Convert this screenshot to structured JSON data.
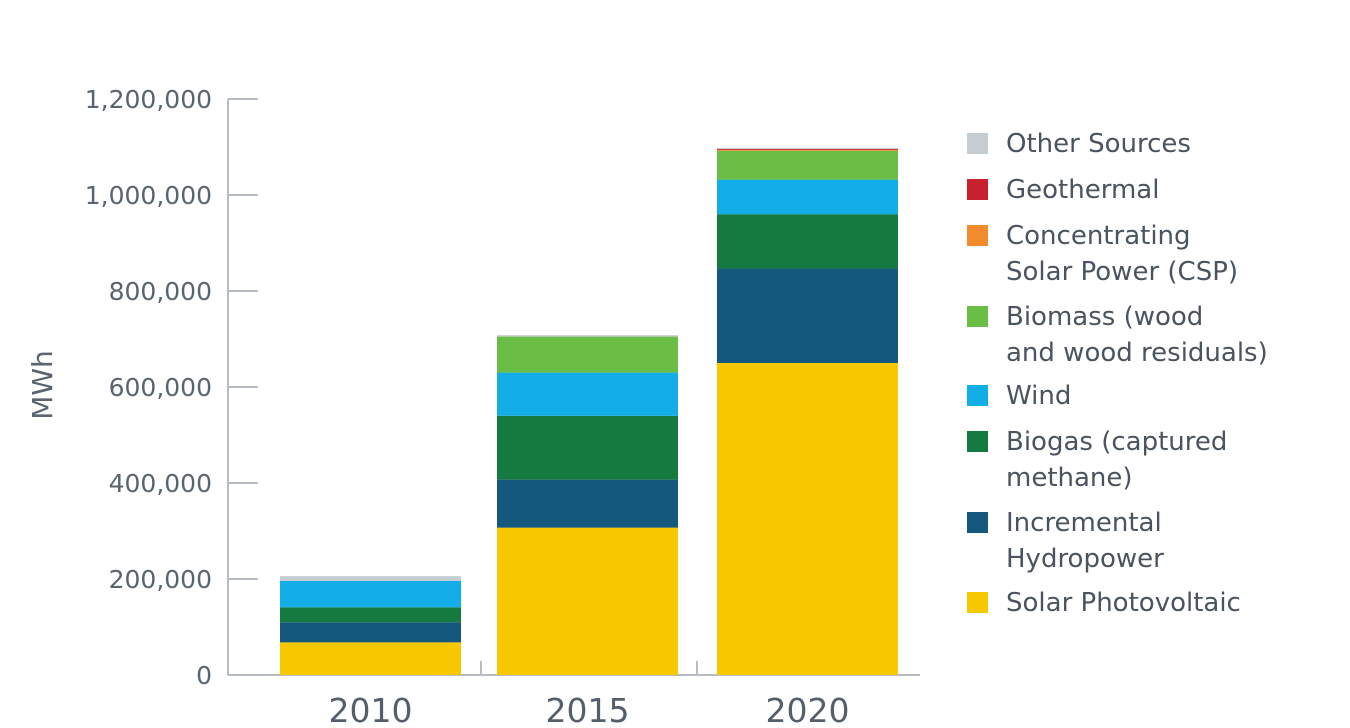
{
  "chart_data": {
    "type": "bar",
    "stacked": true,
    "title": "",
    "xlabel": "",
    "ylabel": "MWh",
    "ylim": [
      0,
      1200000
    ],
    "yticks": [
      0,
      200000,
      400000,
      600000,
      800000,
      1000000,
      1200000
    ],
    "ytick_labels": [
      "0",
      "200,000",
      "400,000",
      "600,000",
      "800,000",
      "1,000,000",
      "1,200,000"
    ],
    "categories": [
      "2010",
      "2015",
      "2020"
    ],
    "grid": false,
    "legend_position": "right",
    "series": [
      {
        "name": "Solar Photovoltaic",
        "color": "#f7c800",
        "values": [
          68000,
          307000,
          650000
        ]
      },
      {
        "name": "Incremental Hydropower",
        "color": "#15587e",
        "values": [
          42000,
          100000,
          197000
        ]
      },
      {
        "name": "Biogas (captured methane)",
        "color": "#147a40",
        "values": [
          31000,
          133000,
          113000
        ]
      },
      {
        "name": "Wind",
        "color": "#13aee8",
        "values": [
          55000,
          90000,
          72000
        ]
      },
      {
        "name": "Biomass (wood and wood residuals)",
        "color": "#6abd45",
        "values": [
          0,
          75000,
          60000
        ]
      },
      {
        "name": "Concentrating Solar Power (CSP)",
        "color": "#f28b2c",
        "values": [
          0,
          0,
          2000
        ]
      },
      {
        "name": "Geothermal",
        "color": "#c8202f",
        "values": [
          0,
          0,
          2000
        ]
      },
      {
        "name": "Other Sources",
        "color": "#c5ccd2",
        "values": [
          10000,
          3000,
          2000
        ]
      }
    ],
    "legend": [
      {
        "series": "Other Sources",
        "lines": [
          "Other Sources"
        ]
      },
      {
        "series": "Geothermal",
        "lines": [
          "Geothermal"
        ]
      },
      {
        "series": "Concentrating Solar Power (CSP)",
        "lines": [
          "Concentrating",
          "Solar Power (CSP)"
        ]
      },
      {
        "series": "Biomass (wood and wood residuals)",
        "lines": [
          "Biomass (wood",
          "and wood residuals)"
        ]
      },
      {
        "series": "Wind",
        "lines": [
          "Wind"
        ]
      },
      {
        "series": "Biogas (captured methane)",
        "lines": [
          "Biogas (captured",
          "methane)"
        ]
      },
      {
        "series": "Incremental Hydropower",
        "lines": [
          "Incremental",
          "Hydropower"
        ]
      },
      {
        "series": "Solar Photovoltaic",
        "lines": [
          "Solar Photovoltaic"
        ]
      }
    ]
  }
}
